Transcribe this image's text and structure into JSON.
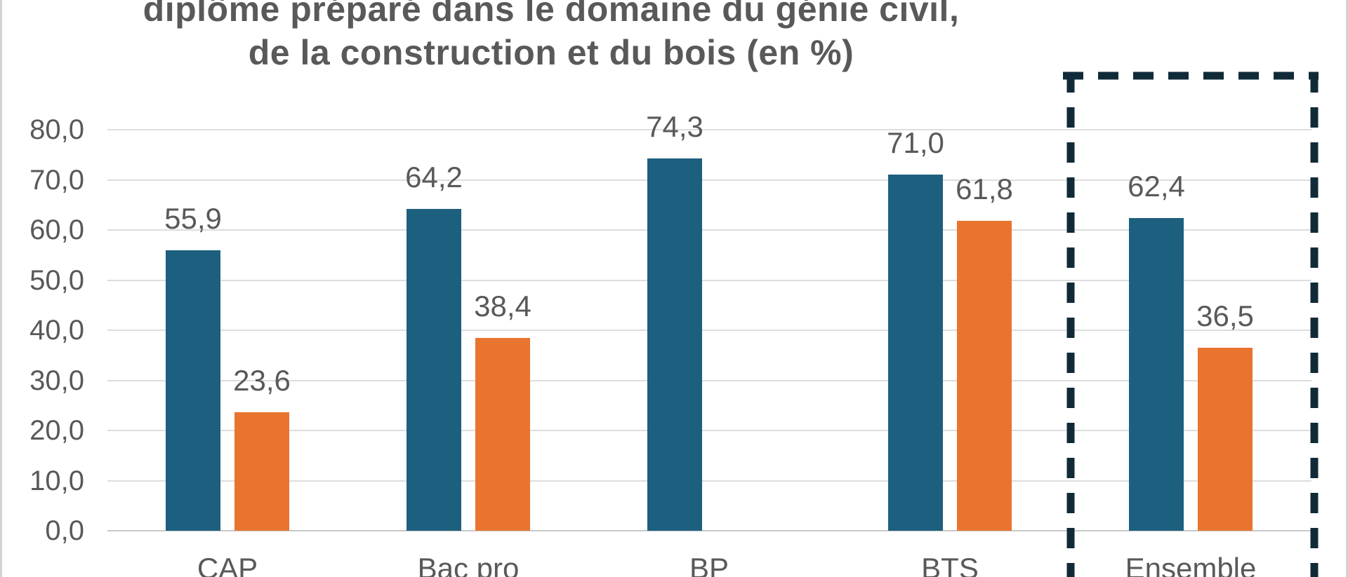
{
  "chart_title": {
    "line1": "diplôme préparé dans le domaine du génie civil,",
    "line2": "de la construction et du bois (en %)"
  },
  "chart_data": {
    "type": "bar",
    "title": "diplôme préparé dans le domaine du génie civil, de la construction et du bois (en %)",
    "categories": [
      "CAP",
      "Bac pro",
      "BP",
      "BTS",
      "Ensemble"
    ],
    "series": [
      {
        "name": "serie-bleue",
        "color": "#1D5F7E",
        "values": [
          55.9,
          64.2,
          74.3,
          71.0,
          62.4
        ],
        "value_labels": [
          "55,9",
          "64,2",
          "74,3",
          "71,0",
          "62,4"
        ]
      },
      {
        "name": "serie-orange",
        "color": "#E8742F",
        "values": [
          23.6,
          38.4,
          null,
          61.8,
          36.5
        ],
        "value_labels": [
          "23,6",
          "38,4",
          "",
          "61,8",
          "36,5"
        ]
      }
    ],
    "y_axis": {
      "min": 0,
      "max": 80,
      "tick_step": 10,
      "tick_labels": [
        "0,0",
        "10,0",
        "20,0",
        "30,0",
        "40,0",
        "50,0",
        "60,0",
        "70,0",
        "80,0"
      ],
      "tick_values": [
        0,
        10,
        20,
        30,
        40,
        50,
        60,
        70,
        80
      ],
      "grid": true
    },
    "highlight": {
      "category": "Ensemble",
      "style": "dashed-box",
      "color": "#102A38"
    }
  },
  "colors": {
    "background": "#FFFFFF",
    "text": "#595959",
    "gridline": "#DDDDDD",
    "axis_line": "#C9C9C9",
    "frame_border": "#D2D2D2"
  }
}
